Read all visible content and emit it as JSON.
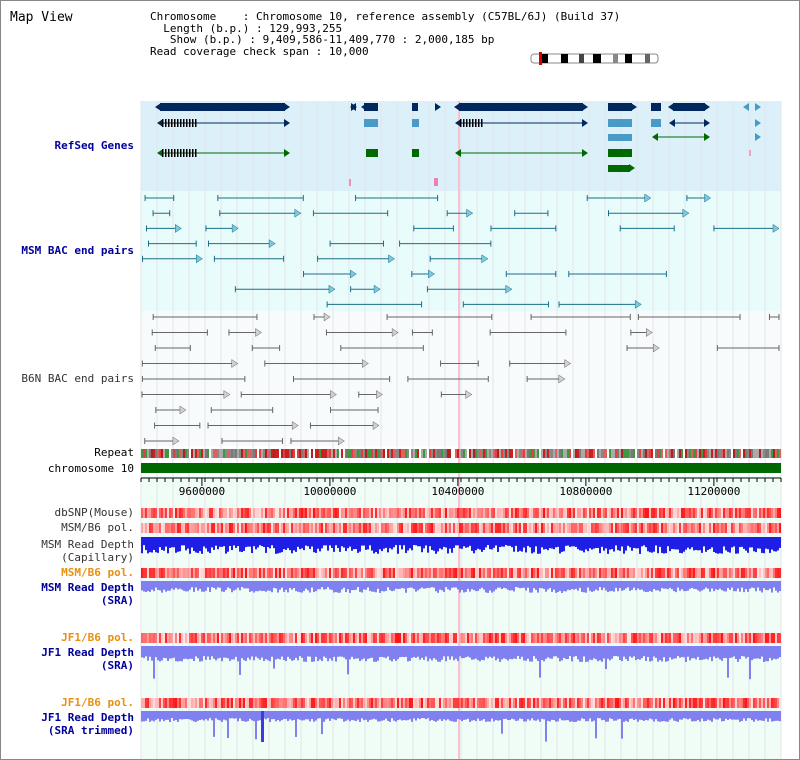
{
  "title": "Map View",
  "info": {
    "chromosome_label": "Chromosome",
    "chromosome_value": "Chromosome 10, reference assembly (C57BL/6J) (Build 37)",
    "length_label": "Length (b.p.)",
    "length_value": "129,993,255",
    "show_label": "Show (b.p.)",
    "show_value": "9,409,586-11,409,770 : 2,000,185 bp",
    "coverage_label": "Read coverage check span",
    "coverage_value": "10,000"
  },
  "tracks": {
    "refseq": "RefSeq Genes",
    "msm_bac": "MSM BAC end pairs",
    "b6n_bac": "B6N BAC end pairs",
    "repeat": "Repeat",
    "chromosome": "chromosome 10",
    "dbsnp": "dbSNP(Mouse)",
    "msm_pol_1": "MSM/B6 pol.",
    "msm_depth_cap_1": "MSM Read Depth",
    "msm_depth_cap_2": "(Capillary)",
    "msm_pol_2": "MSM/B6 pol.",
    "msm_depth_sra_1": "MSM Read Depth",
    "msm_depth_sra_2": "(SRA)",
    "jf1_pol_1": "JF1/B6 pol.",
    "jf1_depth_sra_1": "JF1 Read Depth",
    "jf1_depth_sra_2": "(SRA)",
    "jf1_pol_2": "JF1/B6 pol.",
    "jf1_depth_trim_1": "JF1 Read Depth",
    "jf1_depth_trim_2": "(SRA trimmed)"
  },
  "axis": {
    "ticks": [
      "9600000",
      "10000000",
      "10400000",
      "10800000",
      "11200000"
    ],
    "tick_values": [
      9600000,
      10000000,
      10400000,
      10800000,
      11200000
    ],
    "start": 9409586,
    "end": 11409770
  },
  "colors": {
    "refseq_bg": "#dcf0fa",
    "bac_bg": "#e8fcfc",
    "gene_dark": "#00285c",
    "gene_mid": "#4a9ac8",
    "gene_green": "#006a00",
    "msm_bac": "#1a6e8a",
    "b6n_bac": "#666666",
    "chromosome_bar": "#006600",
    "depth_dark": "#1e1ee6",
    "depth_light": "#8080f0"
  }
}
